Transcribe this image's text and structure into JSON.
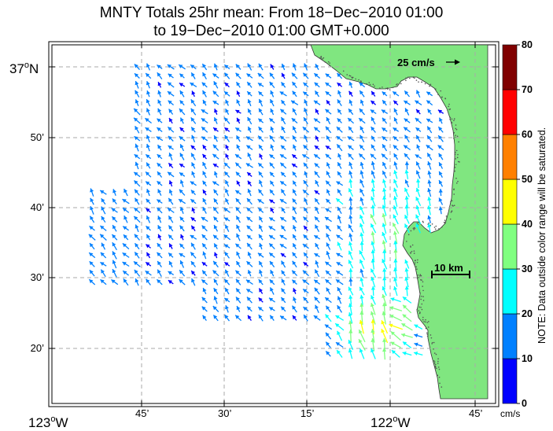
{
  "map": {
    "title_line1": "MNTY Totals 25hr mean: From 18−Dec−2010 01:00",
    "title_line2": "to 19−Dec−2010 01:00 GMT+0.000",
    "lat_labels": [
      {
        "deg": "37",
        "sup": "o",
        "suffix": "N",
        "lat": 36.983
      },
      {
        "text": "50’",
        "lat": 36.833
      },
      {
        "text": "40’",
        "lat": 36.667
      },
      {
        "text": "30’",
        "lat": 36.5
      },
      {
        "text": "20’",
        "lat": 36.333
      }
    ],
    "lon_labels": [
      {
        "deg": "123",
        "sup": "o",
        "suffix": "W",
        "lon": -123.0
      },
      {
        "text": "45’",
        "lon": -122.75
      },
      {
        "text": "30’",
        "lon": -122.5
      },
      {
        "text": "15’",
        "lon": -122.25
      },
      {
        "deg": "122",
        "sup": "o",
        "suffix": "W",
        "lon": -122.0
      },
      {
        "text": "45’",
        "lon": -121.75
      }
    ],
    "reference_vector_label": "25 cm/s",
    "scale_bar_label": "10 km",
    "land_color": "#80e680",
    "grid_color": "#aaaaaa"
  },
  "colorbar": {
    "ticks": [
      "80",
      "70",
      "60",
      "50",
      "40",
      "30",
      "20",
      "10",
      "0"
    ],
    "unit": "cm/s",
    "note": "NOTE: Data outside color range will be saturated.",
    "colors": [
      "#0000ff",
      "#0080ff",
      "#00ffff",
      "#80ff80",
      "#ffff00",
      "#ff8000",
      "#ff0000",
      "#800000"
    ]
  }
}
